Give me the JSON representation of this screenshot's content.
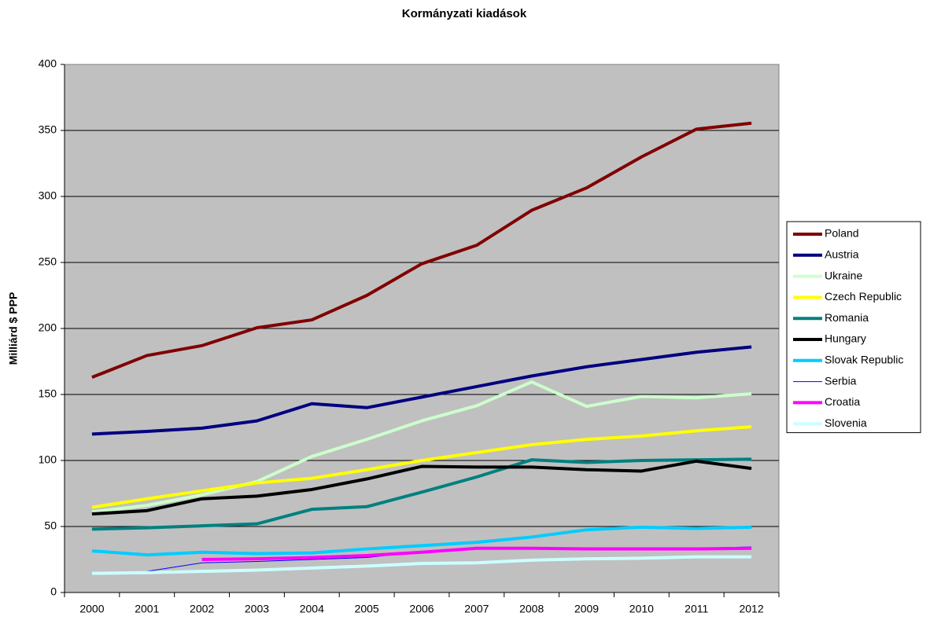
{
  "chart_data": {
    "type": "line",
    "title": "Kormányzati kiadások",
    "y_label": "Milliárd $ PPP",
    "categories": [
      "2000",
      "2001",
      "2002",
      "2003",
      "2004",
      "2005",
      "2006",
      "2007",
      "2008",
      "2009",
      "2010",
      "2011",
      "2012"
    ],
    "ylim": [
      0,
      400
    ],
    "yticks": [
      0,
      50,
      100,
      150,
      200,
      250,
      300,
      350,
      400
    ],
    "grid": true,
    "legend": "right",
    "series": [
      {
        "name": "Poland",
        "color": "#800000",
        "line_width": 4,
        "values": [
          163,
          179.5,
          187,
          200.5,
          206.5,
          225,
          249,
          263,
          289.5,
          306.5,
          330,
          351,
          355.5
        ]
      },
      {
        "name": "Austria",
        "color": "#000080",
        "line_width": 4,
        "values": [
          120,
          122,
          124.5,
          130,
          143,
          140,
          148,
          156,
          164,
          171,
          176.5,
          182,
          186
        ]
      },
      {
        "name": "Ukraine",
        "color": "#ccffcc",
        "line_width": 4,
        "values": [
          61,
          66,
          74,
          84,
          103,
          116,
          130,
          141.5,
          159.5,
          141,
          148.5,
          147.5,
          150.5
        ]
      },
      {
        "name": "Czech Republic",
        "color": "#ffff00",
        "line_width": 4,
        "values": [
          64.5,
          71,
          77,
          83,
          86.5,
          93,
          100,
          106,
          112,
          116,
          118.5,
          122.5,
          125.5
        ]
      },
      {
        "name": "Romania",
        "color": "#008080",
        "line_width": 4,
        "values": [
          48,
          49,
          50.5,
          52,
          63,
          65,
          76,
          87.5,
          100.5,
          98.5,
          100,
          100.5,
          101
        ]
      },
      {
        "name": "Hungary",
        "color": "#000000",
        "line_width": 4,
        "values": [
          59.5,
          62,
          71,
          73,
          78,
          86,
          95.5,
          95,
          95,
          93,
          92,
          99.5,
          94
        ]
      },
      {
        "name": "Slovak Republic",
        "color": "#00ccff",
        "line_width": 4,
        "values": [
          31.5,
          28.5,
          30.5,
          29.5,
          30,
          33,
          35.5,
          38,
          42,
          47.5,
          49.5,
          48.5,
          49.5
        ]
      },
      {
        "name": "Serbia",
        "color": "#0000ff",
        "line_width": 1,
        "values": [
          null,
          16,
          22.5,
          23.5,
          25,
          26.5,
          31,
          33.5,
          34,
          33,
          33,
          33.5,
          34.5
        ]
      },
      {
        "name": "Croatia",
        "color": "#ff00ff",
        "line_width": 4,
        "values": [
          null,
          null,
          25,
          25.5,
          26.5,
          28,
          30.5,
          33.5,
          33.5,
          33,
          33,
          33,
          33.5
        ]
      },
      {
        "name": "Slovenia",
        "color": "#ccffff",
        "line_width": 4,
        "values": [
          14.5,
          15,
          16,
          17,
          18.5,
          20,
          22,
          22.5,
          24.5,
          25.5,
          26,
          27,
          27
        ]
      }
    ]
  }
}
